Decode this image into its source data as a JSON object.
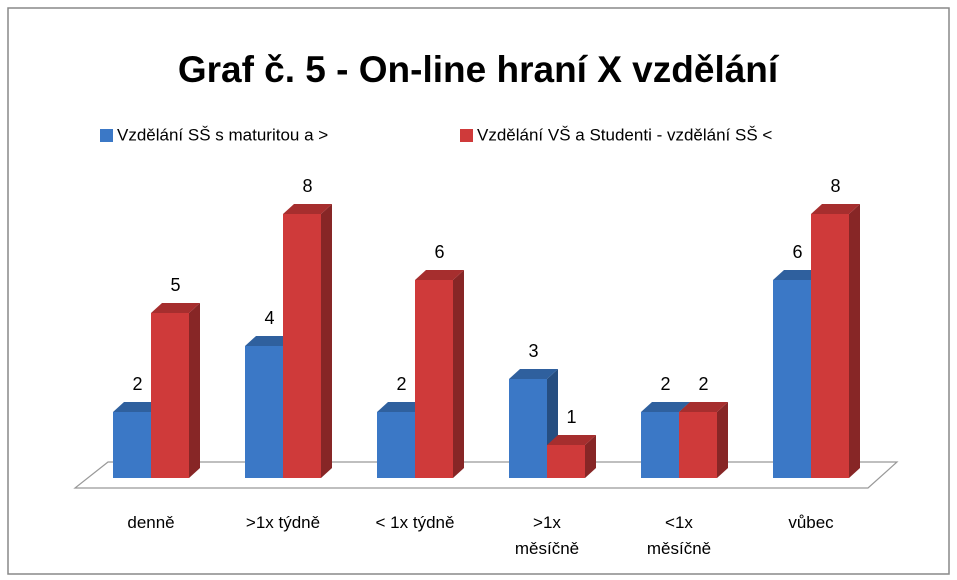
{
  "chart_data": {
    "type": "bar3d",
    "title": "Graf č. 5 - On-line hraní X vzdělání",
    "categories": [
      "denně",
      ">1x týdně",
      "< 1x týdně",
      ">1x\nměsíčně",
      "<1x\nměsíčně",
      "vůbec"
    ],
    "series": [
      {
        "name": "Vzdělání SŠ s maturitou a >",
        "color": "#3b78c6",
        "values": [
          2,
          4,
          2,
          3,
          2,
          6
        ]
      },
      {
        "name": "Vzdělání VŠ a Studenti - vzdělání SŠ <",
        "color": "#cf3a3a",
        "values": [
          5,
          8,
          6,
          1,
          2,
          8
        ]
      }
    ],
    "legend": "top"
  }
}
